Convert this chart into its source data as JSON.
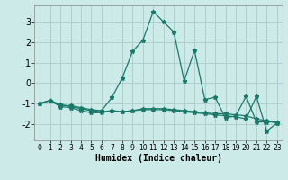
{
  "xlabel": "Humidex (Indice chaleur)",
  "background_color": "#cceae8",
  "grid_color": "#aaccca",
  "line_color": "#1a7a6a",
  "xlim": [
    -0.5,
    23.5
  ],
  "ylim": [
    -2.8,
    3.8
  ],
  "yticks": [
    -2,
    -1,
    0,
    1,
    2,
    3
  ],
  "xticks": [
    0,
    1,
    2,
    3,
    4,
    5,
    6,
    7,
    8,
    9,
    10,
    11,
    12,
    13,
    14,
    15,
    16,
    17,
    18,
    19,
    20,
    21,
    22,
    23
  ],
  "series": [
    {
      "x": [
        0,
        1,
        2,
        3,
        4,
        5,
        6,
        7,
        8,
        9,
        10,
        11,
        12,
        13,
        14,
        15,
        16,
        17,
        18,
        19,
        20,
        21,
        22,
        23
      ],
      "y": [
        -1.0,
        -0.85,
        -1.1,
        -1.1,
        -1.2,
        -1.3,
        -1.35,
        -0.7,
        0.25,
        1.55,
        2.1,
        3.5,
        3.0,
        2.5,
        0.1,
        1.6,
        -0.8,
        -0.7,
        -1.7,
        -1.6,
        -0.65,
        -1.9,
        -1.9,
        -1.9
      ]
    },
    {
      "x": [
        0,
        1,
        2,
        3,
        4,
        5,
        6,
        7,
        8,
        9,
        10,
        11,
        12,
        13,
        14,
        15,
        16,
        17,
        18,
        19,
        20,
        21,
        22,
        23
      ],
      "y": [
        -1.0,
        -0.85,
        -1.15,
        -1.2,
        -1.35,
        -1.45,
        -1.45,
        -1.35,
        -1.4,
        -1.35,
        -1.3,
        -1.3,
        -1.3,
        -1.35,
        -1.4,
        -1.45,
        -1.5,
        -1.55,
        -1.6,
        -1.65,
        -1.75,
        -0.65,
        -2.35,
        -1.95
      ]
    },
    {
      "x": [
        0,
        1,
        2,
        3,
        4,
        5,
        6,
        7,
        8,
        9,
        10,
        11,
        12,
        13,
        14,
        15,
        16,
        17,
        18,
        19,
        20,
        21,
        22,
        23
      ],
      "y": [
        -1.0,
        -0.85,
        -1.05,
        -1.15,
        -1.25,
        -1.35,
        -1.4,
        -1.35,
        -1.4,
        -1.35,
        -1.25,
        -1.25,
        -1.25,
        -1.3,
        -1.35,
        -1.4,
        -1.45,
        -1.5,
        -1.5,
        -1.55,
        -1.6,
        -1.75,
        -1.85,
        -1.95
      ]
    }
  ]
}
